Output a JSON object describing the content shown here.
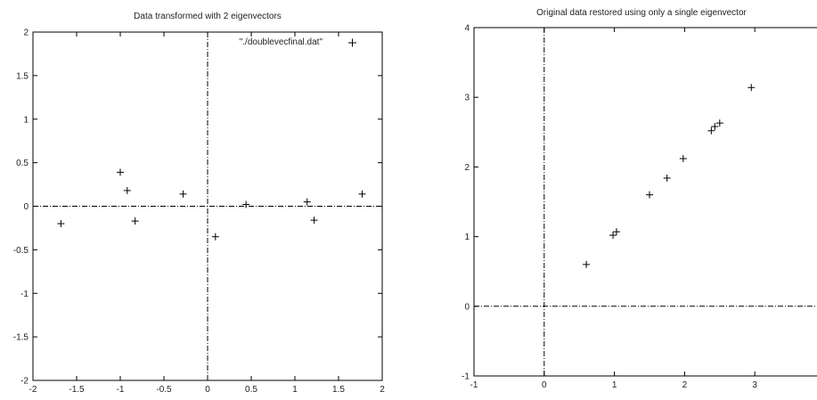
{
  "chart_data": [
    {
      "type": "scatter",
      "title": "Data transformed with 2 eigenvectors",
      "xlim": [
        -2,
        2
      ],
      "ylim": [
        -2,
        2
      ],
      "xticks": [
        "-2",
        "-1.5",
        "-1",
        "-0.5",
        "0",
        "0.5",
        "1",
        "1.5",
        "2"
      ],
      "yticks": [
        "-2",
        "-1.5",
        "-1",
        "-0.5",
        "0",
        "0.5",
        "1",
        "1.5",
        "2"
      ],
      "xtick_values": [
        -2,
        -1.5,
        -1,
        -0.5,
        0,
        0.5,
        1,
        1.5,
        2
      ],
      "ytick_values": [
        -2,
        -1.5,
        -1,
        -0.5,
        0,
        0.5,
        1,
        1.5,
        2
      ],
      "zero_axes": true,
      "legend_position": "top-right",
      "series": [
        {
          "name": "\"./doublevecfinal.dat\"",
          "marker": "+",
          "points": [
            [
              -1.68,
              -0.2
            ],
            [
              -1.0,
              0.39
            ],
            [
              -0.92,
              0.18
            ],
            [
              -0.83,
              -0.17
            ],
            [
              -0.28,
              0.14
            ],
            [
              0.09,
              -0.35
            ],
            [
              0.44,
              0.02
            ],
            [
              1.14,
              0.05
            ],
            [
              1.22,
              -0.16
            ],
            [
              1.77,
              0.14
            ]
          ]
        }
      ]
    },
    {
      "type": "scatter",
      "title": "Original data restored using only a single eigenvector",
      "xlim": [
        -1,
        4
      ],
      "ylim": [
        -1,
        4
      ],
      "xticks": [
        "-1",
        "0",
        "1",
        "2",
        "3"
      ],
      "yticks": [
        "-1",
        "0",
        "1",
        "2",
        "3",
        "4"
      ],
      "xtick_values": [
        -1,
        0,
        1,
        2,
        3
      ],
      "ytick_values": [
        -1,
        0,
        1,
        2,
        3,
        4
      ],
      "zero_axes": true,
      "series": [
        {
          "marker": "+",
          "points": [
            [
              0.6,
              0.6
            ],
            [
              0.98,
              1.02
            ],
            [
              1.03,
              1.07
            ],
            [
              1.5,
              1.6
            ],
            [
              1.75,
              1.84
            ],
            [
              1.98,
              2.12
            ],
            [
              2.38,
              2.52
            ],
            [
              2.43,
              2.58
            ],
            [
              2.5,
              2.63
            ],
            [
              2.95,
              3.14
            ]
          ]
        }
      ]
    }
  ]
}
